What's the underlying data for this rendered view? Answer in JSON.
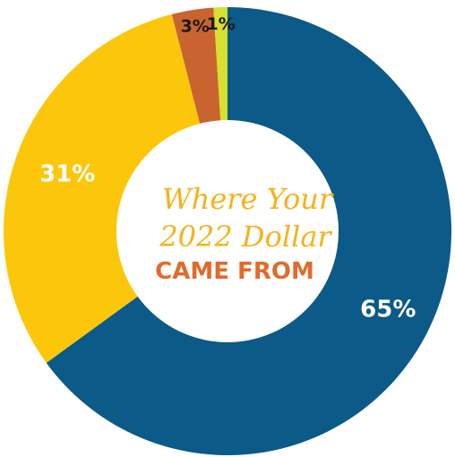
{
  "chart_data": {
    "type": "pie",
    "donut": true,
    "title": [
      "Where Your",
      "2022 Dollar",
      "CAME FROM"
    ],
    "slices": [
      {
        "value": 65,
        "label": "65%",
        "color": "#0b5a87",
        "label_color": "#ffffff"
      },
      {
        "value": 31,
        "label": "31%",
        "color": "#fcc70a",
        "label_color": "#ffffff"
      },
      {
        "value": 3,
        "label": "3%",
        "color": "#c96430",
        "label_color": "#1a1a1a"
      },
      {
        "value": 1,
        "label": "1%",
        "color": "#d6e02e",
        "label_color": "#1a1a1a"
      }
    ],
    "title_colors": {
      "script": "#f6b21a",
      "bold": "#e26a2c"
    }
  }
}
